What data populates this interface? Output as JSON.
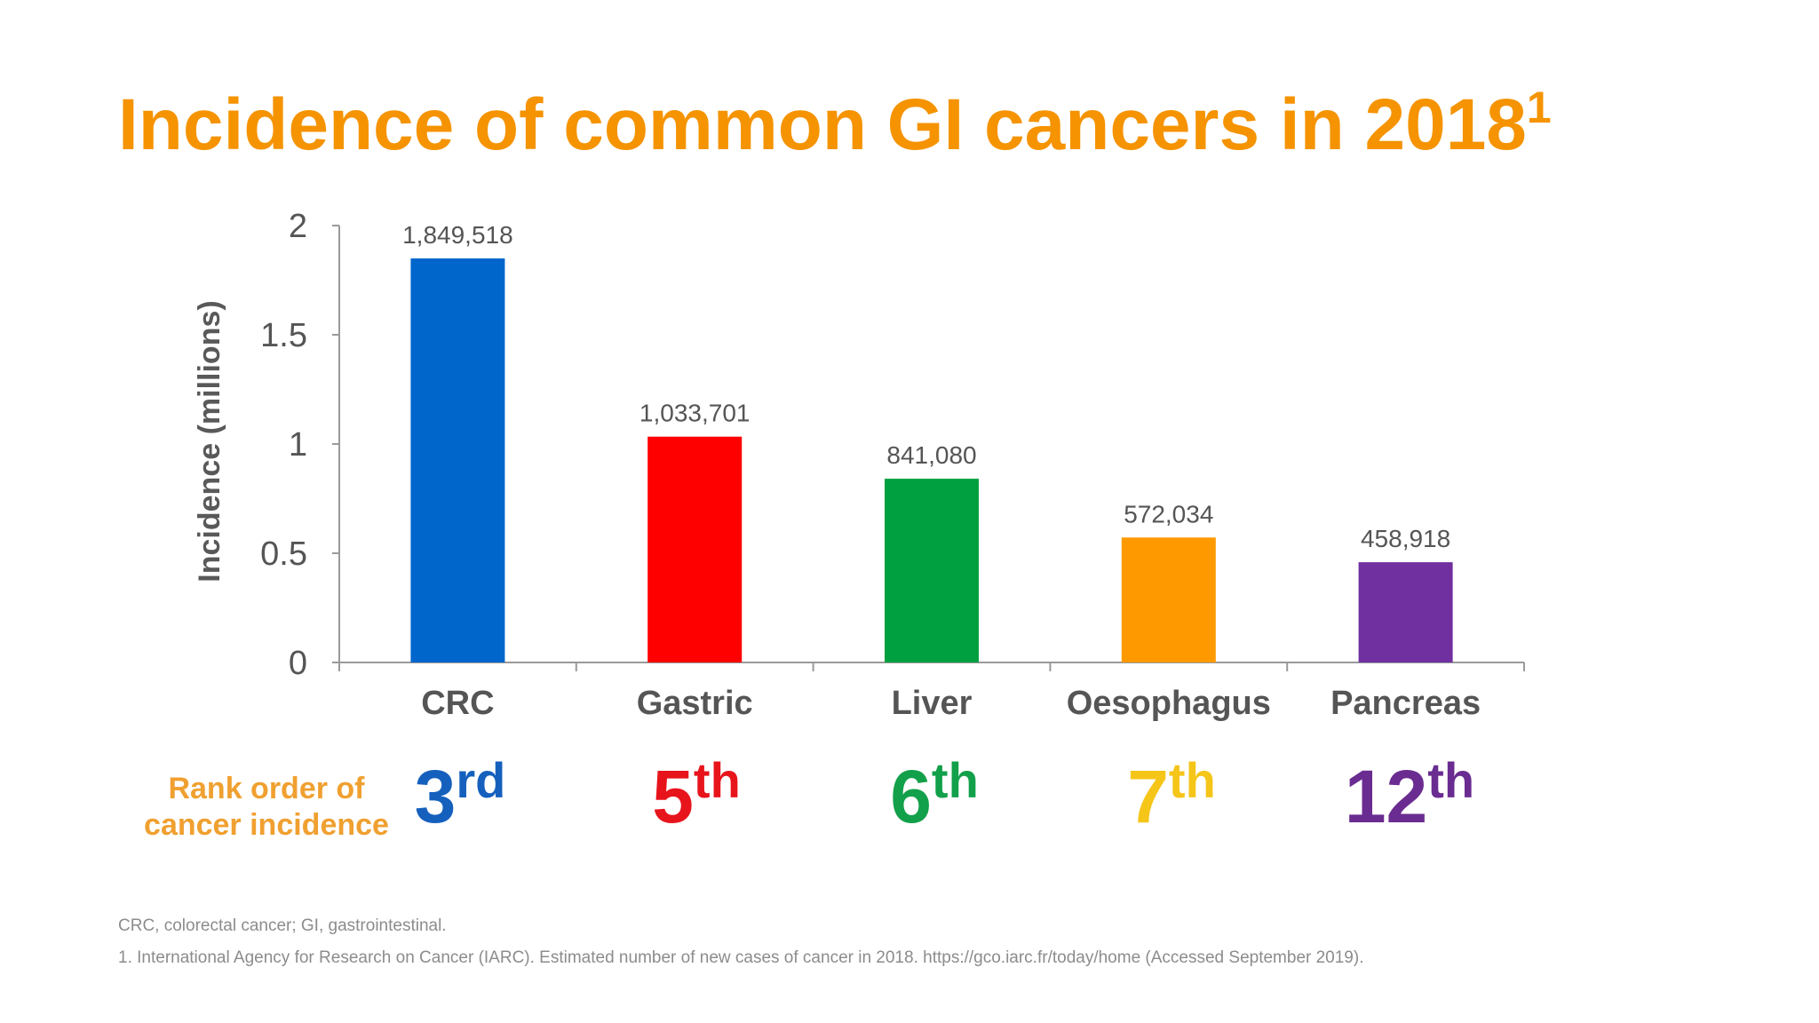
{
  "slide": {
    "title": "Incidence of common GI cancers in 2018",
    "title_sup": "1",
    "rank_heading_line1": "Rank order of",
    "rank_heading_line2": "cancer incidence",
    "footnote_abbrev": "CRC, colorectal cancer; GI, gastrointestinal.",
    "footnote_ref": "1. International Agency for Research on Cancer (IARC). Estimated number of new cases of cancer in 2018. https://gco.iarc.fr/today/home (Accessed September 2019)."
  },
  "chart_data": {
    "type": "bar",
    "ylabel": "Incidence (millions)",
    "xlabel": "",
    "ylim": [
      0,
      2
    ],
    "yticks": [
      0,
      0.5,
      1,
      1.5,
      2
    ],
    "ytick_labels": [
      "0",
      "0.5",
      "1",
      "1.5",
      "2"
    ],
    "categories": [
      "CRC",
      "Gastric",
      "Liver",
      "Oesophagus",
      "Pancreas"
    ],
    "values": [
      1.849518,
      1.033701,
      0.84108,
      0.572034,
      0.458918
    ],
    "data_labels": [
      "1,849,518",
      "1,033,701",
      "841,080",
      "572,034",
      "458,918"
    ],
    "colors": [
      "#0066CC",
      "#FF0000",
      "#00A040",
      "#FF9900",
      "#7030A0"
    ],
    "grid": false,
    "legend": "none"
  },
  "ranks": [
    {
      "num": "3",
      "suffix": "rd",
      "color": "#1560BD"
    },
    {
      "num": "5",
      "suffix": "th",
      "color": "#E8141C"
    },
    {
      "num": "6",
      "suffix": "th",
      "color": "#12A04A"
    },
    {
      "num": "7",
      "suffix": "th",
      "color": "#F5C518"
    },
    {
      "num": "12",
      "suffix": "th",
      "color": "#6A2C91"
    }
  ]
}
